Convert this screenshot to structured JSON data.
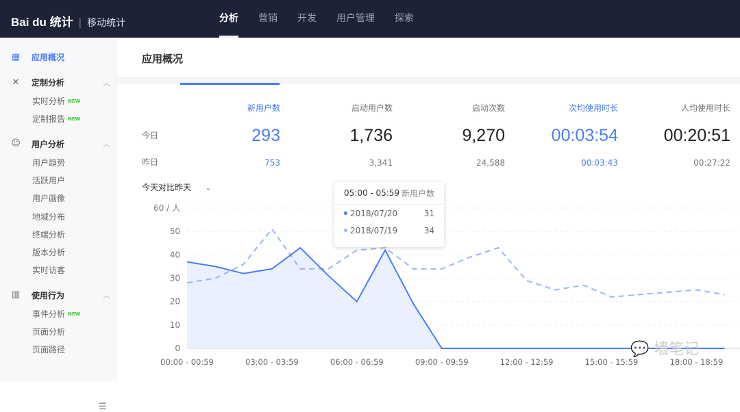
{
  "header": {
    "logo": "Bai du 统计",
    "product": "移动统计",
    "nav": [
      "分析",
      "营销",
      "开发",
      "用户管理",
      "探索"
    ],
    "active_nav": "分析"
  },
  "sidebar": {
    "top_item": "应用概况",
    "groups": [
      {
        "label": "定制分析",
        "icon": "tools-icon",
        "items": [
          {
            "label": "实时分析",
            "badge": "NEW"
          },
          {
            "label": "定制报告",
            "badge": "NEW"
          }
        ]
      },
      {
        "label": "用户分析",
        "icon": "user-icon",
        "items": [
          {
            "label": "用户趋势"
          },
          {
            "label": "活跃用户"
          },
          {
            "label": "用户画像"
          },
          {
            "label": "地域分布"
          },
          {
            "label": "终端分析"
          },
          {
            "label": "版本分析"
          },
          {
            "label": "实时访客"
          }
        ]
      },
      {
        "label": "使用行为",
        "icon": "bar-chart-icon",
        "items": [
          {
            "label": "事件分析",
            "badge": "NEW"
          },
          {
            "label": "页面分析"
          },
          {
            "label": "页面路径"
          }
        ]
      }
    ]
  },
  "main": {
    "title": "应用概况",
    "row_today": "今日",
    "row_yesterday": "昨日",
    "metrics": [
      {
        "label": "新用户数",
        "today": "293",
        "yesterday": "753",
        "highlight": true
      },
      {
        "label": "启动用户数",
        "today": "1,736",
        "yesterday": "3,341"
      },
      {
        "label": "启动次数",
        "today": "9,270",
        "yesterday": "24,588"
      },
      {
        "label": "次均使用时长",
        "today": "00:03:54",
        "yesterday": "00:03:43",
        "highlight": true
      },
      {
        "label": "人均使用时长",
        "today": "00:20:51",
        "yesterday": "00:27:22"
      }
    ],
    "compare_select": "今天对比昨天"
  },
  "tooltip": {
    "range": "05:00 - 05:59",
    "metric": "新用户数",
    "rows": [
      {
        "date": "2018/07/20",
        "value": "31",
        "color": "#4a7cf6"
      },
      {
        "date": "2018/07/19",
        "value": "34",
        "color": "#9ab4f8"
      }
    ]
  },
  "watermark": "墙笔记",
  "chart_data": {
    "type": "line",
    "ylabel": "60 / 人",
    "ylim": [
      0,
      60
    ],
    "yticks": [
      "0",
      "10",
      "20",
      "30",
      "40",
      "50"
    ],
    "x": [
      "00:00 - 00:59",
      "01:00 - 01:59",
      "02:00 - 02:59",
      "03:00 - 03:59",
      "04:00 - 04:59",
      "05:00 - 05:59",
      "06:00 - 06:59",
      "07:00 - 07:59",
      "08:00 - 08:59",
      "09:00 - 09:59",
      "10:00 - 10:59",
      "11:00 - 11:59",
      "12:00 - 12:59",
      "13:00 - 13:59",
      "14:00 - 14:59",
      "15:00 - 15:59",
      "16:00 - 16:59",
      "17:00 - 17:59",
      "18:00 - 18:59",
      "19:00 - 19:59"
    ],
    "xtick_labels": [
      "00:00 - 00:59",
      "03:00 - 03:59",
      "06:00 - 06:59",
      "09:00 - 09:59",
      "12:00 - 12:59",
      "15:00 - 15:59",
      "18:00 - 18:59"
    ],
    "grid": true,
    "series": [
      {
        "name": "2018/07/20",
        "style": "solid-area",
        "color": "#4a7cf6",
        "values": [
          37,
          35,
          32,
          34,
          43,
          31,
          20,
          42,
          19,
          0,
          0,
          0,
          0,
          0,
          0,
          0,
          0,
          0,
          0,
          0
        ]
      },
      {
        "name": "2018/07/19",
        "style": "dashed",
        "color": "#9ab4f8",
        "values": [
          28,
          30,
          36,
          51,
          34,
          34,
          42,
          43,
          34,
          34,
          39,
          43,
          29,
          25,
          27,
          22,
          23,
          24,
          25,
          23
        ]
      }
    ]
  }
}
